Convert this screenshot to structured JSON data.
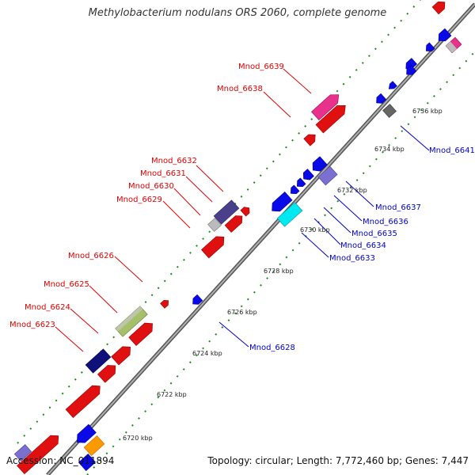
{
  "title": "Methylobacterium nodulans ORS 2060, complete genome",
  "accession_label": "Accession: NC_011894",
  "topology_label": "Topology: circular; Length: 7,772,460 bp; Genes: 7,447",
  "colors": {
    "backbone": "#8c8c8c",
    "forward_label": "#e00000",
    "reverse_label": "#0000cc",
    "dots": "#1c8a1c"
  },
  "scale_ticks": [
    "6720 kbp",
    "6722 kbp",
    "6724 kbp",
    "6726 kbp",
    "6728 kbp",
    "6730 kbp",
    "6732 kbp",
    "6734 kbp",
    "6736 kbp"
  ],
  "forward_gene_labels": [
    "Mnod_6639",
    "Mnod_6638",
    "Mnod_6632",
    "Mnod_6631",
    "Mnod_6630",
    "Mnod_6629",
    "Mnod_6626",
    "Mnod_6625",
    "Mnod_6624",
    "Mnod_6623"
  ],
  "reverse_gene_labels": [
    "Mnod_6641",
    "Mnod_6637",
    "Mnod_6636",
    "Mnod_6635",
    "Mnod_6634",
    "Mnod_6633",
    "Mnod_6628"
  ]
}
